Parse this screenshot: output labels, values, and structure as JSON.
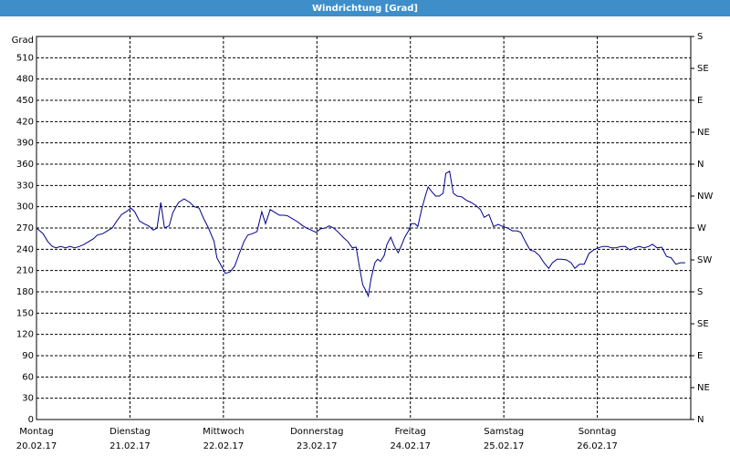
{
  "chart_data": {
    "type": "line",
    "title": "Windrichtung [Grad]",
    "y_label": "Grad",
    "xlim": [
      0,
      7
    ],
    "xticks": [
      {
        "value": 0,
        "label": "Montag",
        "date": "20.02.17"
      },
      {
        "value": 1,
        "label": "Dienstag",
        "date": "21.02.17"
      },
      {
        "value": 2,
        "label": "Mittwoch",
        "date": "22.02.17"
      },
      {
        "value": 3,
        "label": "Donnerstag",
        "date": "23.02.17"
      },
      {
        "value": 4,
        "label": "Freitag",
        "date": "24.02.17"
      },
      {
        "value": 5,
        "label": "Samstag",
        "date": "25.02.17"
      },
      {
        "value": 6,
        "label": "Sonntag",
        "date": "26.02.17"
      }
    ],
    "ylim": [
      0,
      540
    ],
    "yticks": [
      0,
      30,
      60,
      90,
      120,
      150,
      180,
      210,
      240,
      270,
      300,
      330,
      360,
      390,
      420,
      450,
      480,
      510
    ],
    "y2lim": [
      0,
      540
    ],
    "y2ticks": [
      {
        "value": 0,
        "label": "N"
      },
      {
        "value": 45,
        "label": "NE"
      },
      {
        "value": 90,
        "label": "E"
      },
      {
        "value": 135,
        "label": "SE"
      },
      {
        "value": 180,
        "label": "S"
      },
      {
        "value": 225,
        "label": "SW"
      },
      {
        "value": 270,
        "label": "W"
      },
      {
        "value": 315,
        "label": "NW"
      },
      {
        "value": 360,
        "label": "N"
      },
      {
        "value": 405,
        "label": "NE"
      },
      {
        "value": 450,
        "label": "E"
      },
      {
        "value": 495,
        "label": "SE"
      },
      {
        "value": 540,
        "label": "S"
      }
    ],
    "grid": true,
    "series": [
      {
        "color": "#00008b",
        "x": [
          0,
          0.07,
          0.12,
          0.17,
          0.21,
          0.26,
          0.31,
          0.36,
          0.41,
          0.46,
          0.51,
          0.56,
          0.61,
          0.65,
          0.71,
          0.76,
          0.81,
          0.86,
          0.91,
          0.96,
          1.01,
          1.05,
          1.1,
          1.15,
          1.2,
          1.25,
          1.29,
          1.33,
          1.37,
          1.42,
          1.46,
          1.52,
          1.58,
          1.64,
          1.69,
          1.74,
          1.79,
          1.84,
          1.9,
          1.93,
          1.98,
          2.02,
          2.07,
          2.12,
          2.17,
          2.22,
          2.26,
          2.31,
          2.36,
          2.41,
          2.45,
          2.5,
          2.55,
          2.6,
          2.65,
          2.69,
          2.74,
          2.79,
          2.84,
          2.89,
          2.94,
          2.99,
          3.04,
          3.09,
          3.13,
          3.18,
          3.23,
          3.28,
          3.33,
          3.38,
          3.42,
          3.45,
          3.49,
          3.53,
          3.55,
          3.58,
          3.62,
          3.65,
          3.68,
          3.72,
          3.75,
          3.79,
          3.83,
          3.87,
          3.9,
          3.94,
          3.98,
          4.01,
          4.05,
          4.08,
          4.12,
          4.16,
          4.19,
          4.23,
          4.27,
          4.31,
          4.35,
          4.38,
          4.42,
          4.46,
          4.5,
          4.55,
          4.6,
          4.65,
          4.7,
          4.75,
          4.79,
          4.84,
          4.89,
          4.94,
          4.99,
          5.04,
          5.09,
          5.14,
          5.18,
          5.23,
          5.28,
          5.33,
          5.38,
          5.43,
          5.48,
          5.52,
          5.57,
          5.62,
          5.67,
          5.72,
          5.76,
          5.81,
          5.86,
          5.91,
          5.96,
          6.01,
          6.06,
          6.11,
          6.15,
          6.2,
          6.25,
          6.3,
          6.35,
          6.4,
          6.45,
          6.5,
          6.55,
          6.59,
          6.64,
          6.69,
          6.74,
          6.79,
          6.84,
          6.89,
          6.94
        ],
        "values": [
          270,
          262,
          251,
          244,
          242,
          244,
          242,
          244,
          242,
          244,
          247,
          251,
          255,
          260,
          262,
          266,
          270,
          280,
          289,
          293,
          298,
          293,
          280,
          276,
          273,
          267,
          270,
          306,
          270,
          273,
          292,
          306,
          311,
          306,
          300,
          298,
          283,
          270,
          251,
          228,
          216,
          206,
          208,
          216,
          234,
          251,
          260,
          262,
          265,
          293,
          276,
          296,
          292,
          288,
          288,
          287,
          283,
          279,
          274,
          270,
          267,
          264,
          269,
          270,
          273,
          270,
          264,
          257,
          251,
          242,
          243,
          219,
          190,
          180,
          174,
          199,
          221,
          226,
          223,
          231,
          247,
          257,
          244,
          235,
          244,
          257,
          266,
          276,
          276,
          272,
          296,
          315,
          328,
          321,
          315,
          315,
          319,
          347,
          350,
          319,
          315,
          314,
          309,
          306,
          302,
          296,
          285,
          289,
          272,
          275,
          272,
          270,
          266,
          266,
          264,
          251,
          239,
          237,
          231,
          221,
          213,
          221,
          226,
          226,
          225,
          221,
          213,
          219,
          219,
          234,
          239,
          242,
          244,
          244,
          242,
          242,
          244,
          244,
          239,
          242,
          244,
          242,
          244,
          247,
          242,
          243,
          230,
          228,
          219,
          221,
          221
        ]
      }
    ]
  }
}
